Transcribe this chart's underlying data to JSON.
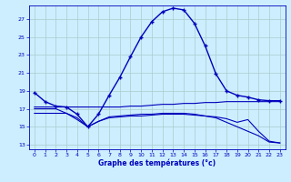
{
  "xlabel": "Graphe des températures (°c)",
  "background_color": "#cceeff",
  "grid_color": "#aacccc",
  "line_color": "#0000bb",
  "ylim": [
    12.5,
    28.5
  ],
  "xlim": [
    -0.5,
    23.5
  ],
  "yticks": [
    13,
    15,
    17,
    19,
    21,
    23,
    25,
    27
  ],
  "xticks": [
    0,
    1,
    2,
    3,
    4,
    5,
    6,
    7,
    8,
    9,
    10,
    11,
    12,
    13,
    14,
    15,
    16,
    17,
    18,
    19,
    20,
    21,
    22,
    23
  ],
  "line1_x": [
    0,
    1,
    2,
    3,
    4,
    5,
    6,
    7,
    8,
    9,
    10,
    11,
    12,
    13,
    14,
    15,
    16,
    17,
    18,
    19,
    20,
    21,
    22,
    23
  ],
  "line1_y": [
    18.8,
    17.8,
    17.3,
    17.2,
    16.4,
    15.0,
    16.4,
    18.5,
    20.5,
    22.8,
    25.0,
    26.7,
    27.8,
    28.2,
    28.0,
    26.5,
    24.0,
    20.9,
    19.0,
    18.5,
    18.3,
    18.0,
    17.9,
    17.9
  ],
  "line2_x": [
    0,
    1,
    2,
    3,
    4,
    5,
    6,
    7,
    8,
    9,
    10,
    11,
    12,
    13,
    14,
    15,
    16,
    17,
    18,
    19,
    20,
    21,
    22,
    23
  ],
  "line2_y": [
    17.2,
    17.2,
    17.2,
    17.2,
    17.2,
    17.2,
    17.2,
    17.2,
    17.2,
    17.3,
    17.3,
    17.4,
    17.5,
    17.5,
    17.6,
    17.6,
    17.7,
    17.7,
    17.8,
    17.8,
    17.8,
    17.8,
    17.8,
    17.8
  ],
  "line3_x": [
    0,
    1,
    2,
    3,
    4,
    5,
    6,
    7,
    8,
    9,
    10,
    11,
    12,
    13,
    14,
    15,
    16,
    17,
    18,
    19,
    20,
    21,
    22,
    23
  ],
  "line3_y": [
    16.5,
    16.5,
    16.5,
    16.5,
    15.8,
    15.0,
    15.6,
    16.0,
    16.1,
    16.2,
    16.2,
    16.3,
    16.4,
    16.4,
    16.4,
    16.3,
    16.2,
    16.1,
    15.9,
    15.5,
    15.8,
    14.5,
    13.4,
    13.2
  ],
  "line4_x": [
    0,
    1,
    2,
    3,
    4,
    5,
    6,
    7,
    8,
    9,
    10,
    11,
    12,
    13,
    14,
    15,
    16,
    17,
    18,
    19,
    20,
    21,
    22,
    23
  ],
  "line4_y": [
    17.0,
    17.0,
    17.0,
    16.5,
    16.0,
    15.0,
    15.6,
    16.1,
    16.2,
    16.3,
    16.4,
    16.4,
    16.5,
    16.5,
    16.5,
    16.4,
    16.2,
    16.0,
    15.5,
    15.0,
    14.5,
    14.0,
    13.3,
    13.2
  ]
}
